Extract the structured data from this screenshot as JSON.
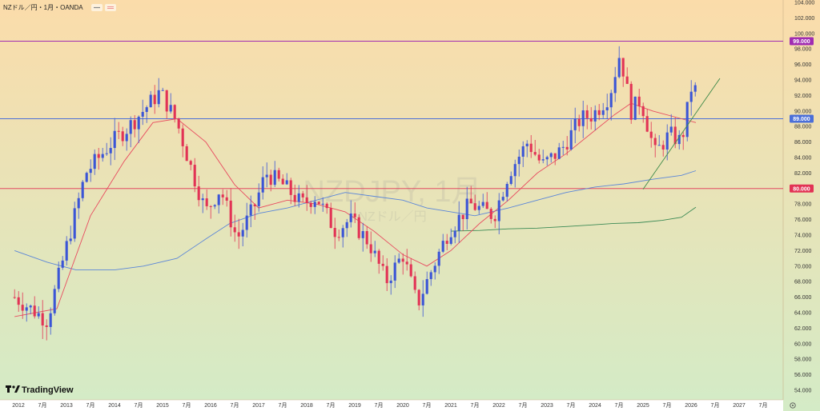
{
  "header": {
    "title": "NZドル／円・1月・OANDA",
    "legend_dots": [
      "#b8b8b8",
      "#f09393"
    ]
  },
  "watermark": {
    "main": "NZDJPY, 1月",
    "sub": "NZドル／円"
  },
  "logo": {
    "text": "TradingView",
    "icon": "tradingview-logo-icon"
  },
  "settings_icon": "settings-gear-icon",
  "colors": {
    "bg_top": "#fbdcaa",
    "bg_bottom": "#d4ebc6",
    "up": "#3b55d6",
    "down": "#e23355",
    "ma_short": "#e84d61",
    "ma_mid": "#5b86d8",
    "ma_long": "#3c8a55",
    "trend_line": "#3f8a4a",
    "line_99": "#a02cb2",
    "line_89": "#4b6fd8",
    "line_80": "#e23355"
  },
  "chart_data": {
    "type": "candlestick",
    "title": "NZドル／円・1月・OANDA",
    "ylim": [
      52.5,
      105
    ],
    "y_ticks": [
      "104.000",
      "102.000",
      "100.000",
      "98.000",
      "96.000",
      "94.000",
      "92.000",
      "90.000",
      "88.000",
      "86.000",
      "84.000",
      "82.000",
      "80.000",
      "78.000",
      "76.000",
      "74.000",
      "72.000",
      "70.000",
      "68.000",
      "66.000",
      "64.000",
      "62.000",
      "60.000",
      "58.000",
      "56.000",
      "54.000"
    ],
    "x_ticks": [
      {
        "label": "2012",
        "t": 2012.0
      },
      {
        "label": "7月",
        "t": 2012.5
      },
      {
        "label": "2013",
        "t": 2013.0
      },
      {
        "label": "7月",
        "t": 2013.5
      },
      {
        "label": "2014",
        "t": 2014.0
      },
      {
        "label": "7月",
        "t": 2014.5
      },
      {
        "label": "2015",
        "t": 2015.0
      },
      {
        "label": "7月",
        "t": 2015.5
      },
      {
        "label": "2016",
        "t": 2016.0
      },
      {
        "label": "7月",
        "t": 2016.5
      },
      {
        "label": "2017",
        "t": 2017.0
      },
      {
        "label": "7月",
        "t": 2017.5
      },
      {
        "label": "2018",
        "t": 2018.0
      },
      {
        "label": "7月",
        "t": 2018.5
      },
      {
        "label": "2019",
        "t": 2019.0
      },
      {
        "label": "7月",
        "t": 2019.5
      },
      {
        "label": "2020",
        "t": 2020.0
      },
      {
        "label": "7月",
        "t": 2020.5
      },
      {
        "label": "2021",
        "t": 2021.0
      },
      {
        "label": "7月",
        "t": 2021.5
      },
      {
        "label": "2022",
        "t": 2022.0
      },
      {
        "label": "7月",
        "t": 2022.5
      },
      {
        "label": "2023",
        "t": 2023.0
      },
      {
        "label": "7月",
        "t": 2023.5
      },
      {
        "label": "2024",
        "t": 2024.0
      },
      {
        "label": "7月",
        "t": 2024.5
      },
      {
        "label": "2025",
        "t": 2025.0
      },
      {
        "label": "7月",
        "t": 2025.5
      },
      {
        "label": "2026",
        "t": 2026.0
      },
      {
        "label": "7月",
        "t": 2026.5
      },
      {
        "label": "2027",
        "t": 2027.0
      },
      {
        "label": "7月",
        "t": 2027.5
      }
    ],
    "horizontal_lines": [
      {
        "value": 99,
        "label": "99.000",
        "color": "#a02cb2"
      },
      {
        "value": 89,
        "label": "89.000",
        "color": "#4b6fd8"
      },
      {
        "value": 80,
        "label": "80.000",
        "color": "#e23355"
      }
    ],
    "key_points": [
      {
        "t": 2011.92,
        "close": 66.0
      },
      {
        "t": 2012.6,
        "close": 63.0
      },
      {
        "t": 2013.4,
        "close": 82.0
      },
      {
        "t": 2013.95,
        "close": 86.0
      },
      {
        "t": 2014.3,
        "close": 88.0
      },
      {
        "t": 2014.95,
        "close": 92.5
      },
      {
        "t": 2015.3,
        "close": 88.5
      },
      {
        "t": 2015.6,
        "close": 82.5
      },
      {
        "t": 2015.9,
        "close": 77.0
      },
      {
        "t": 2016.2,
        "close": 80.0
      },
      {
        "t": 2016.55,
        "close": 73.5
      },
      {
        "t": 2016.9,
        "close": 77.5
      },
      {
        "t": 2017.15,
        "close": 82.0
      },
      {
        "t": 2017.5,
        "close": 80.5
      },
      {
        "t": 2017.9,
        "close": 78.0
      },
      {
        "t": 2018.2,
        "close": 79.0
      },
      {
        "t": 2018.6,
        "close": 74.5
      },
      {
        "t": 2018.9,
        "close": 76.0
      },
      {
        "t": 2019.3,
        "close": 73.0
      },
      {
        "t": 2019.65,
        "close": 68.0
      },
      {
        "t": 2020.0,
        "close": 71.5
      },
      {
        "t": 2020.3,
        "close": 65.0
      },
      {
        "t": 2020.6,
        "close": 69.5
      },
      {
        "t": 2020.95,
        "close": 74.5
      },
      {
        "t": 2021.4,
        "close": 78.0
      },
      {
        "t": 2021.9,
        "close": 76.5
      },
      {
        "t": 2022.2,
        "close": 82.0
      },
      {
        "t": 2022.6,
        "close": 86.0
      },
      {
        "t": 2022.9,
        "close": 83.0
      },
      {
        "t": 2023.3,
        "close": 85.0
      },
      {
        "t": 2023.7,
        "close": 89.0
      },
      {
        "t": 2023.95,
        "close": 89.5
      },
      {
        "t": 2024.3,
        "close": 92.0
      },
      {
        "t": 2024.52,
        "close": 97.5
      },
      {
        "t": 2024.75,
        "close": 90.0
      },
      {
        "t": 2024.95,
        "close": 91.5
      },
      {
        "t": 2025.25,
        "close": 84.5
      },
      {
        "t": 2025.55,
        "close": 87.0
      },
      {
        "t": 2025.8,
        "close": 86.0
      },
      {
        "t": 2026.02,
        "close": 93.5
      },
      {
        "t": 2026.12,
        "close": 92.3
      }
    ],
    "ma_short": [
      [
        2011.92,
        63.5
      ],
      [
        2012.8,
        64.5
      ],
      [
        2013.5,
        76.5
      ],
      [
        2014.2,
        83.5
      ],
      [
        2014.8,
        88.5
      ],
      [
        2015.3,
        89.0
      ],
      [
        2015.9,
        86.0
      ],
      [
        2016.5,
        80.5
      ],
      [
        2017.0,
        77.5
      ],
      [
        2017.6,
        78.5
      ],
      [
        2018.2,
        78.0
      ],
      [
        2018.8,
        77.0
      ],
      [
        2019.4,
        74.5
      ],
      [
        2020.0,
        71.5
      ],
      [
        2020.5,
        70.0
      ],
      [
        2021.0,
        72.0
      ],
      [
        2021.6,
        75.5
      ],
      [
        2022.2,
        78.5
      ],
      [
        2022.8,
        82.0
      ],
      [
        2023.4,
        84.5
      ],
      [
        2023.9,
        87.0
      ],
      [
        2024.4,
        89.5
      ],
      [
        2024.75,
        91.0
      ],
      [
        2025.2,
        90.0
      ],
      [
        2025.8,
        89.0
      ],
      [
        2026.1,
        88.5
      ]
    ],
    "ma_mid": [
      [
        2011.92,
        72.0
      ],
      [
        2012.6,
        70.5
      ],
      [
        2013.2,
        69.5
      ],
      [
        2014.0,
        69.5
      ],
      [
        2014.6,
        70.0
      ],
      [
        2015.3,
        71.0
      ],
      [
        2015.9,
        73.5
      ],
      [
        2016.4,
        75.5
      ],
      [
        2017.0,
        76.8
      ],
      [
        2017.6,
        77.5
      ],
      [
        2018.2,
        78.5
      ],
      [
        2018.8,
        79.5
      ],
      [
        2019.4,
        79.0
      ],
      [
        2020.0,
        78.5
      ],
      [
        2020.5,
        77.5
      ],
      [
        2021.0,
        77.0
      ],
      [
        2021.5,
        76.5
      ],
      [
        2022.2,
        77.5
      ],
      [
        2022.8,
        78.5
      ],
      [
        2023.4,
        79.5
      ],
      [
        2024.0,
        80.2
      ],
      [
        2024.6,
        80.6
      ],
      [
        2025.2,
        81.2
      ],
      [
        2025.8,
        81.7
      ],
      [
        2026.1,
        82.3
      ]
    ],
    "ma_long": [
      [
        2021.0,
        74.5
      ],
      [
        2021.6,
        74.6
      ],
      [
        2022.2,
        74.8
      ],
      [
        2022.8,
        74.9
      ],
      [
        2023.4,
        75.1
      ],
      [
        2023.9,
        75.3
      ],
      [
        2024.4,
        75.5
      ],
      [
        2024.9,
        75.6
      ],
      [
        2025.4,
        75.9
      ],
      [
        2025.8,
        76.3
      ],
      [
        2026.1,
        77.6
      ]
    ],
    "trend_line": [
      [
        2025.0,
        79.9
      ],
      [
        2026.6,
        94.2
      ]
    ]
  }
}
